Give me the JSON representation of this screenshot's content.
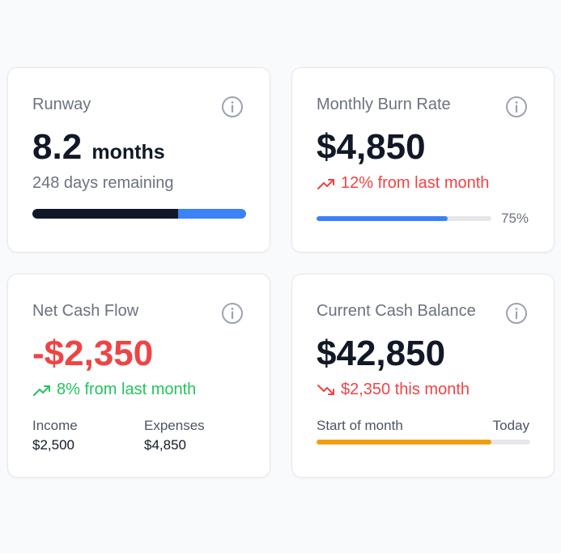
{
  "cards": {
    "runway": {
      "title": "Runway",
      "value": "8.2",
      "unit": "months",
      "sub": "248 days remaining",
      "progress_dark_fraction": 0.68,
      "colors": {
        "dark": "#111827",
        "accent": "#3b82f6"
      }
    },
    "burn_rate": {
      "title": "Monthly Burn Rate",
      "value": "$4,850",
      "trend_text": "12% from last month",
      "trend_icon": "trending-up-icon",
      "progress_percent": 75,
      "progress_label": "75%",
      "colors": {
        "accent": "#3b82f6",
        "trend": "#ef4444"
      }
    },
    "net_cash_flow": {
      "title": "Net Cash Flow",
      "value": "-$2,350",
      "trend_text": "8% from last month",
      "trend_icon": "trending-up-icon",
      "income_label": "Income",
      "income_value": "$2,500",
      "expenses_label": "Expenses",
      "expenses_value": "$4,850",
      "colors": {
        "value": "#ef4444",
        "trend": "#22c55e"
      }
    },
    "cash_balance": {
      "title": "Current Cash Balance",
      "value": "$42,850",
      "trend_text": "$2,350 this month",
      "trend_icon": "trending-down-icon",
      "start_label": "Start of month",
      "end_label": "Today",
      "progress_fraction": 0.82,
      "colors": {
        "accent": "#f59e0b",
        "trend": "#ef4444"
      }
    }
  }
}
